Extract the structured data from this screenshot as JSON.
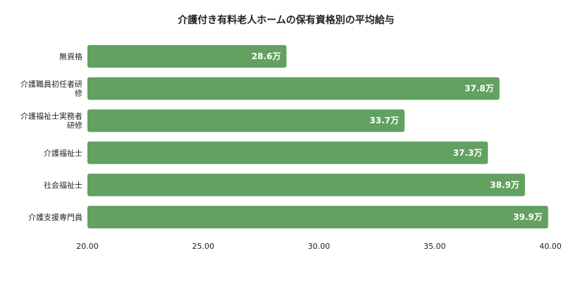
{
  "chart_data": {
    "type": "bar",
    "orientation": "horizontal",
    "title": "介護付き有料老人ホームの保有資格別の平均給与",
    "xlabel": "",
    "ylabel": "",
    "categories": [
      [
        "無資格"
      ],
      [
        "介護職員初任者研",
        "修"
      ],
      [
        "介護福祉士実務者",
        "研修"
      ],
      [
        "介護福祉士"
      ],
      [
        "社会福祉士"
      ],
      [
        "介護支援専門員"
      ]
    ],
    "values": [
      28.6,
      37.8,
      33.7,
      37.3,
      38.9,
      39.9
    ],
    "value_labels": [
      "28.6万",
      "37.8万",
      "33.7万",
      "37.3万",
      "38.9万",
      "39.9万"
    ],
    "xlim": [
      20,
      40
    ],
    "ticks": [
      "20.00",
      "25.00",
      "30.00",
      "35.00",
      "40.00"
    ],
    "grid": false,
    "legend": "none",
    "bar_color": "#62a15f"
  }
}
